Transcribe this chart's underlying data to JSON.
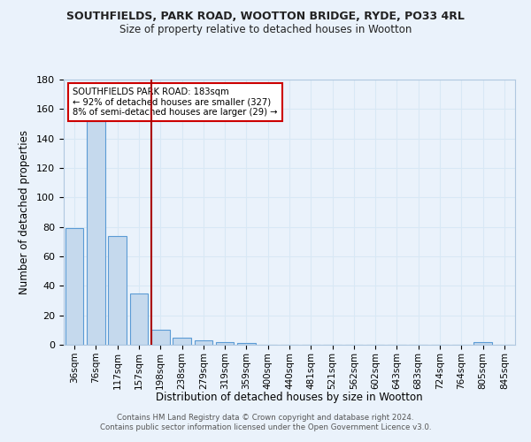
{
  "title1": "SOUTHFIELDS, PARK ROAD, WOOTTON BRIDGE, RYDE, PO33 4RL",
  "title2": "Size of property relative to detached houses in Wootton",
  "xlabel": "Distribution of detached houses by size in Wootton",
  "ylabel": "Number of detached properties",
  "bar_labels": [
    "36sqm",
    "76sqm",
    "117sqm",
    "157sqm",
    "198sqm",
    "238sqm",
    "279sqm",
    "319sqm",
    "359sqm",
    "400sqm",
    "440sqm",
    "481sqm",
    "521sqm",
    "562sqm",
    "602sqm",
    "643sqm",
    "683sqm",
    "724sqm",
    "764sqm",
    "805sqm",
    "845sqm"
  ],
  "bar_values": [
    79,
    152,
    74,
    35,
    10,
    5,
    3,
    2,
    1,
    0,
    0,
    0,
    0,
    0,
    0,
    0,
    0,
    0,
    0,
    2,
    0
  ],
  "bar_color": "#c5d9ed",
  "bar_edge_color": "#5b9bd5",
  "ylim": [
    0,
    180
  ],
  "yticks": [
    0,
    20,
    40,
    60,
    80,
    100,
    120,
    140,
    160,
    180
  ],
  "red_line_index": 4,
  "red_line_color": "#aa0000",
  "annotation_text": "SOUTHFIELDS PARK ROAD: 183sqm\n← 92% of detached houses are smaller (327)\n8% of semi-detached houses are larger (29) →",
  "annotation_box_color": "#ffffff",
  "annotation_box_edge": "#cc0000",
  "footer": "Contains HM Land Registry data © Crown copyright and database right 2024.\nContains public sector information licensed under the Open Government Licence v3.0.",
  "bg_color": "#eaf2fb",
  "grid_color": "#d8e8f5"
}
